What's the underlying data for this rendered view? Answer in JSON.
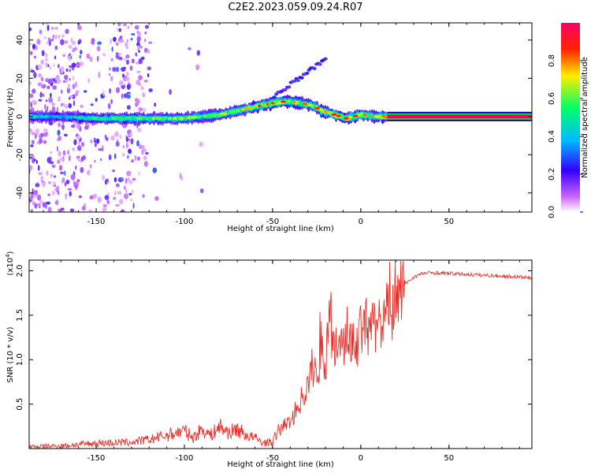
{
  "title": "C2E2.2023.059.09.24.R07",
  "colors": {
    "line": "#e8302a",
    "background": "#ffffff",
    "axis": "#000000"
  },
  "chart_data": [
    {
      "type": "heatmap",
      "title": "C2E2.2023.059.09.24.R07",
      "xlabel": "Height of straight line (km)",
      "ylabel": "Frequency (Hz)",
      "xlim": [
        -188,
        97
      ],
      "ylim": [
        -50,
        49
      ],
      "x_ticks": [
        "-150",
        "-100",
        "-50",
        "0",
        "50"
      ],
      "y_ticks": [
        "-40",
        "-20",
        "0",
        "20",
        "40"
      ],
      "colorbar": {
        "label": "Normalized spectral amplitude",
        "range": [
          0,
          1
        ],
        "ticks": [
          "0.0",
          "0.2",
          "0.4",
          "0.6",
          "0.8"
        ],
        "colors": [
          "#ffffff",
          "#cc66ff",
          "#3300ff",
          "#00bbff",
          "#00ff66",
          "#ffee00",
          "#ff2200",
          "#ff0066"
        ]
      },
      "ridge": {
        "description_points_x": [
          -188,
          -170,
          -150,
          -130,
          -110,
          -100,
          -90,
          -80,
          -70,
          -60,
          -50,
          -42,
          -35,
          -28,
          -22,
          -15,
          -8,
          0,
          8,
          15,
          97
        ],
        "frequency": [
          0,
          0,
          -1,
          -1,
          -1,
          -1,
          0,
          1,
          3,
          5,
          7,
          8,
          7,
          6,
          3,
          1,
          -1,
          1,
          0,
          0,
          0
        ],
        "peak_amplitude": [
          0.5,
          0.4,
          0.55,
          0.6,
          0.6,
          0.7,
          0.6,
          0.7,
          0.65,
          0.75,
          0.8,
          0.8,
          0.75,
          0.7,
          0.8,
          0.85,
          0.8,
          0.75,
          0.7,
          0.9,
          0.95
        ]
      }
    },
    {
      "type": "line",
      "xlabel": "Height of straight line (km)",
      "ylabel": "SNR (10 * v/v)",
      "multiplier_label": "(x10",
      "multiplier_exp": "4",
      "multiplier_close": ")",
      "xlim": [
        -188,
        97
      ],
      "ylim": [
        0,
        2.12
      ],
      "x_ticks": [
        "-150",
        "-100",
        "-50",
        "0",
        "50"
      ],
      "y_ticks": [
        "0.5",
        "1.0",
        "1.5",
        "2.0"
      ],
      "series": [
        {
          "x": [
            -188,
            -170,
            -150,
            -130,
            -120,
            -110,
            -100,
            -95,
            -90,
            -85,
            -80,
            -75,
            -70,
            -65,
            -60,
            -55,
            -50,
            -45,
            -40,
            -35,
            -30,
            -27,
            -25,
            -22,
            -20,
            -18,
            -15,
            -12,
            -10,
            -8,
            -5,
            -3,
            0,
            3,
            5,
            8,
            10,
            12,
            15,
            18,
            20,
            23,
            25,
            30,
            35,
            40,
            50,
            60,
            70,
            80,
            90,
            97
          ],
          "y": [
            0.02,
            0.03,
            0.06,
            0.07,
            0.1,
            0.15,
            0.2,
            0.12,
            0.22,
            0.15,
            0.25,
            0.18,
            0.22,
            0.15,
            0.12,
            0.06,
            0.08,
            0.25,
            0.3,
            0.5,
            0.7,
            0.95,
            0.8,
            1.2,
            1.0,
            1.4,
            1.1,
            1.35,
            1.2,
            1.3,
            1.25,
            1.15,
            1.3,
            1.35,
            1.2,
            1.4,
            1.45,
            1.3,
            1.55,
            1.55,
            1.65,
            1.75,
            1.85,
            1.93,
            1.97,
            1.98,
            1.97,
            1.96,
            1.95,
            1.94,
            1.93,
            1.92
          ]
        }
      ]
    }
  ]
}
